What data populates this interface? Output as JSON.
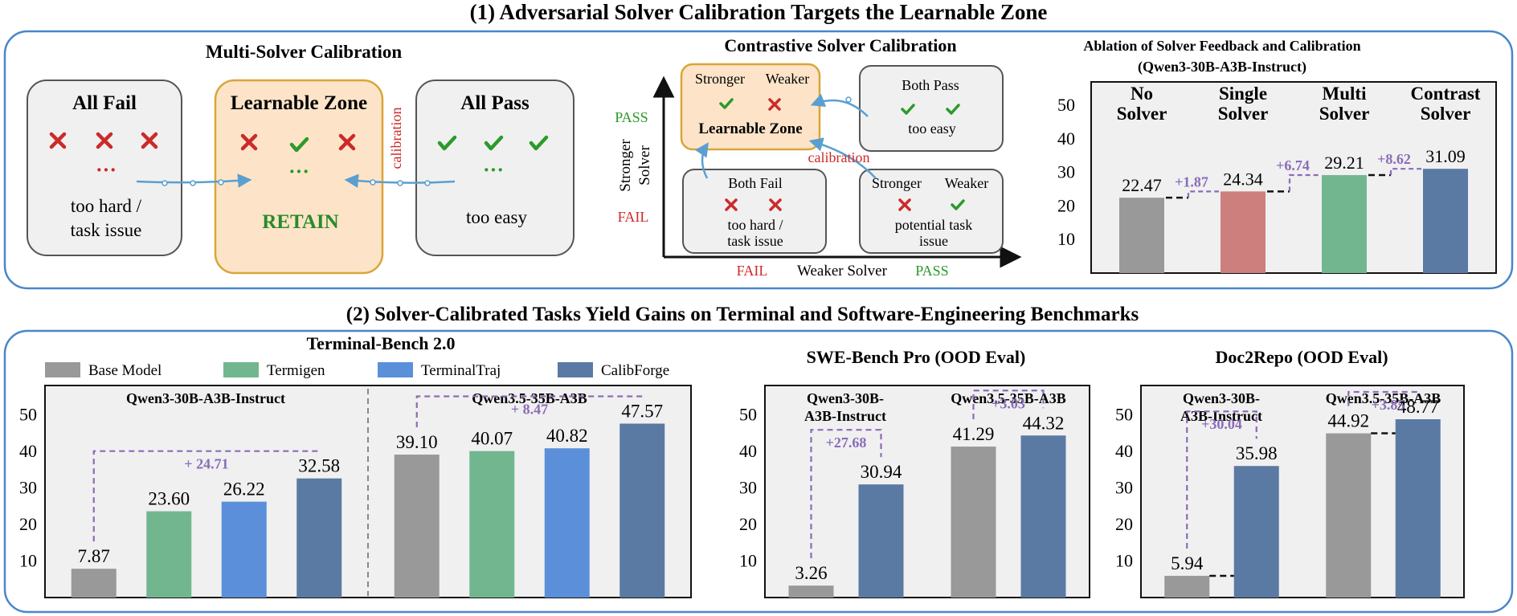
{
  "section1": {
    "title": "(1) Adversarial Solver Calibration Targets the Learnable Zone",
    "multi": {
      "title": "Multi-Solver Calibration",
      "all_fail": {
        "title": "All Fail",
        "dots": "···",
        "desc1": "too hard /",
        "desc2": "task issue"
      },
      "learnable": {
        "title": "Learnable Zone",
        "dots": "···",
        "retain": "RETAIN"
      },
      "all_pass": {
        "title": "All Pass",
        "dots": "···",
        "desc": "too easy"
      },
      "calibration_label": "calibration"
    },
    "contrastive": {
      "title": "Contrastive Solver Calibration",
      "learnable": {
        "stronger": "Stronger",
        "weaker": "Weaker",
        "title": "Learnable Zone"
      },
      "both_pass": {
        "title": "Both Pass",
        "desc": "too easy"
      },
      "both_fail": {
        "title": "Both Fail",
        "desc1": "too hard /",
        "desc2": "task issue"
      },
      "potential": {
        "stronger": "Stronger",
        "weaker": "Weaker",
        "desc1": "potential task",
        "desc2": "issue"
      },
      "calibration_label": "calibration",
      "y_axis": {
        "pass": "PASS",
        "label1": "Stronger",
        "label2": "Solver",
        "fail": "FAIL"
      },
      "x_axis": {
        "fail": "FAIL",
        "label": "Weaker Solver",
        "pass": "PASS"
      }
    },
    "ablation": {
      "title1": "Ablation of Solver Feedback and Calibration",
      "title2": "(Qwen3-30B-A3B-Instruct)",
      "chart_data": {
        "type": "bar",
        "categories": [
          "No Solver",
          "Single Solver",
          "Multi Solver",
          "Contrast Solver"
        ],
        "category_lines": [
          [
            "No",
            "Solver"
          ],
          [
            "Single",
            "Solver"
          ],
          [
            "Multi",
            "Solver"
          ],
          [
            "Contrast",
            "Solver"
          ]
        ],
        "values": [
          22.47,
          24.34,
          29.21,
          31.09
        ],
        "value_labels": [
          "22.47",
          "24.34",
          "29.21",
          "31.09"
        ],
        "deltas": [
          "+1.87",
          "+6.74",
          "+8.62"
        ],
        "colors": [
          "#999999",
          "#cd7f7d",
          "#72b68f",
          "#5a7aa3"
        ],
        "yticks": [
          10,
          20,
          30,
          40,
          50
        ],
        "ylim": [
          0,
          57
        ]
      }
    }
  },
  "section2": {
    "title": "(2) Solver-Calibrated Tasks Yield Gains on Terminal and Software-Engineering Benchmarks",
    "legend": [
      {
        "name": "Base Model",
        "color": "#999999"
      },
      {
        "name": "Termigen",
        "color": "#72b68f"
      },
      {
        "name": "TerminalTraj",
        "color": "#5b8fd9"
      },
      {
        "name": "CalibForge",
        "color": "#5a7aa3"
      }
    ],
    "terminal_bench": {
      "title": "Terminal-Bench 2.0",
      "chart_data": {
        "type": "bar",
        "groups": [
          {
            "model": "Qwen3-30B-A3B-Instruct",
            "series": [
              "Base Model",
              "Termigen",
              "TerminalTraj",
              "CalibForge"
            ],
            "values": [
              7.87,
              23.6,
              26.22,
              32.58
            ],
            "value_labels": [
              "7.87",
              "23.60",
              "26.22",
              "32.58"
            ],
            "delta": "+ 24.71"
          },
          {
            "model": "Qwen3.5-35B-A3B",
            "series": [
              "Base Model",
              "Termigen",
              "TerminalTraj",
              "CalibForge"
            ],
            "values": [
              39.1,
              40.07,
              40.82,
              47.57
            ],
            "value_labels": [
              "39.10",
              "40.07",
              "40.82",
              "47.57"
            ],
            "delta": "+ 8.47"
          }
        ],
        "yticks": [
          10,
          20,
          30,
          40,
          50
        ],
        "ylim": [
          0,
          58
        ]
      }
    },
    "swe_bench": {
      "title": "SWE-Bench Pro (OOD Eval)",
      "chart_data": {
        "type": "bar",
        "groups": [
          {
            "model_lines": [
              "Qwen3-30B-",
              "A3B-Instruct"
            ],
            "series": [
              "Base Model",
              "CalibForge"
            ],
            "values": [
              3.26,
              30.94
            ],
            "value_labels": [
              "3.26",
              "30.94"
            ],
            "delta": "+27.68"
          },
          {
            "model_lines": [
              "Qwen3.5-35B-A3B"
            ],
            "series": [
              "Base Model",
              "CalibForge"
            ],
            "values": [
              41.29,
              44.32
            ],
            "value_labels": [
              "41.29",
              "44.32"
            ],
            "delta": "+3.03"
          }
        ],
        "yticks": [
          10,
          20,
          30,
          40,
          50
        ],
        "ylim": [
          0,
          58
        ]
      }
    },
    "doc2repo": {
      "title": "Doc2Repo (OOD Eval)",
      "chart_data": {
        "type": "bar",
        "groups": [
          {
            "model_lines": [
              "Qwen3-30B-",
              "A3B-Instruct"
            ],
            "series": [
              "Base Model",
              "CalibForge"
            ],
            "values": [
              5.94,
              35.98
            ],
            "value_labels": [
              "5.94",
              "35.98"
            ],
            "delta": "+30.04"
          },
          {
            "model_lines": [
              "Qwen3.5-35B-A3B"
            ],
            "series": [
              "Base Model",
              "CalibForge"
            ],
            "values": [
              44.92,
              48.77
            ],
            "value_labels": [
              "44.92",
              "48.77"
            ],
            "delta": "+3.85"
          }
        ],
        "yticks": [
          10,
          20,
          30,
          40,
          50
        ],
        "ylim": [
          0,
          58
        ]
      }
    }
  },
  "colors": {
    "frame": "#4a86c8",
    "delta": "#8a6cb8",
    "fail": "#cc2a2a",
    "pass": "#2a9a2a",
    "learnable_fill": "#fde4c8",
    "learnable_stroke": "#d9a53a",
    "box_fill": "#f0f0f0",
    "arrow": "#5a9fd0"
  }
}
